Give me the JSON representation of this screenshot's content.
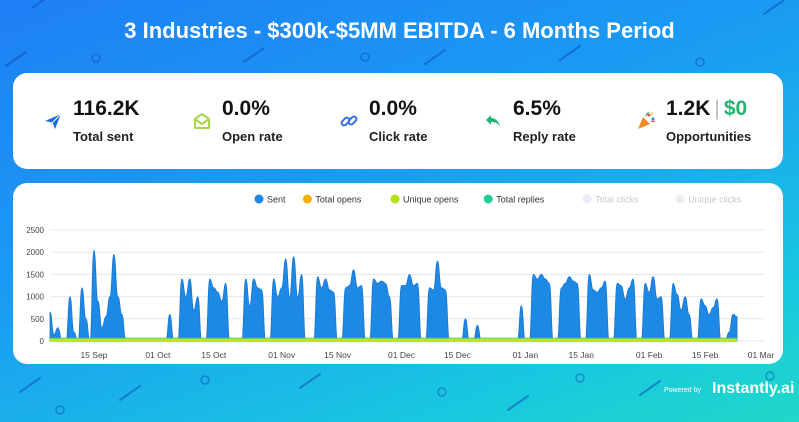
{
  "title": "3 Industries - $300k-$5MM EBITDA - 6 Months Period",
  "stats": [
    {
      "value": "116.2K",
      "label": "Total sent",
      "icon": "paper-plane-icon",
      "color": "#1a6be6"
    },
    {
      "value": "0.0%",
      "label": "Open rate",
      "icon": "open-envelope-icon",
      "color": "#a8d64a"
    },
    {
      "value": "0.0%",
      "label": "Click rate",
      "icon": "link-icon",
      "color": "#2f6fe0"
    },
    {
      "value": "6.5%",
      "label": "Reply rate",
      "icon": "reply-arrow-icon",
      "color": "#22b573"
    },
    {
      "value": "1.2K",
      "separator": "|",
      "value2": "$0",
      "label": "Opportunities",
      "icon": "party-popper-icon",
      "color": "#f08a24"
    }
  ],
  "chart_data": {
    "type": "area",
    "legend": [
      {
        "name": "Sent",
        "color": "#1e88e5",
        "active": true
      },
      {
        "name": "Total opens",
        "color": "#f5b300",
        "active": true
      },
      {
        "name": "Unique opens",
        "color": "#b5e01a",
        "active": true
      },
      {
        "name": "Total replies",
        "color": "#1ecf8f",
        "active": true
      },
      {
        "name": "Total clicks",
        "color": "#e8eef4",
        "active": false
      },
      {
        "name": "Unique clicks",
        "color": "#e8eef4",
        "active": false
      }
    ],
    "y_ticks": [
      0,
      500,
      1000,
      1500,
      2000,
      2500
    ],
    "ylim": [
      0,
      2500
    ],
    "x_ticks": [
      {
        "day": 11,
        "label": "15 Sep"
      },
      {
        "day": 27,
        "label": "01 Oct"
      },
      {
        "day": 41,
        "label": "15 Oct"
      },
      {
        "day": 58,
        "label": "01 Nov"
      },
      {
        "day": 72,
        "label": "15 Nov"
      },
      {
        "day": 88,
        "label": "01 Dec"
      },
      {
        "day": 102,
        "label": "15 Dec"
      },
      {
        "day": 119,
        "label": "01 Jan"
      },
      {
        "day": 133,
        "label": "15 Jan"
      },
      {
        "day": 150,
        "label": "01 Feb"
      },
      {
        "day": 164,
        "label": "15 Feb"
      },
      {
        "day": 178,
        "label": "01 Mar"
      }
    ],
    "x_range": [
      0,
      179
    ],
    "sent": [
      650,
      150,
      300,
      0,
      0,
      1000,
      200,
      0,
      1200,
      500,
      0,
      2050,
      900,
      300,
      550,
      1000,
      1950,
      1000,
      600,
      0,
      0,
      0,
      0,
      0,
      0,
      0,
      0,
      0,
      0,
      0,
      600,
      0,
      0,
      1400,
      1000,
      1400,
      700,
      1000,
      0,
      0,
      1400,
      1200,
      1100,
      900,
      1300,
      0,
      0,
      0,
      0,
      1400,
      800,
      1400,
      1200,
      1150,
      0,
      0,
      1400,
      1000,
      1200,
      1850,
      1000,
      1900,
      1000,
      1500,
      0,
      0,
      0,
      1450,
      1200,
      1400,
      1150,
      1100,
      0,
      0,
      1200,
      1250,
      1600,
      1200,
      1250,
      0,
      0,
      1400,
      1300,
      1350,
      1300,
      1000,
      0,
      0,
      1250,
      1250,
      1500,
      1250,
      1300,
      0,
      0,
      1200,
      1150,
      1800,
      1200,
      1150,
      0,
      0,
      0,
      0,
      500,
      0,
      0,
      350,
      0,
      0,
      0,
      0,
      0,
      0,
      0,
      0,
      0,
      0,
      800,
      0,
      0,
      1500,
      1400,
      1500,
      1400,
      1300,
      0,
      0,
      1200,
      1300,
      1450,
      1350,
      1300,
      0,
      0,
      1500,
      1150,
      1100,
      1200,
      1350,
      0,
      0,
      1300,
      1250,
      950,
      1200,
      1400,
      0,
      0,
      1300,
      1100,
      1450,
      950,
      1000,
      0,
      0,
      1300,
      1050,
      700,
      1000,
      600,
      0,
      0,
      950,
      800,
      600,
      750,
      950,
      0,
      0,
      200,
      600,
      550
    ],
    "opens_level": 55,
    "replies_level": 75
  },
  "powered_by": "Powered by",
  "brand": "Instantly.ai"
}
